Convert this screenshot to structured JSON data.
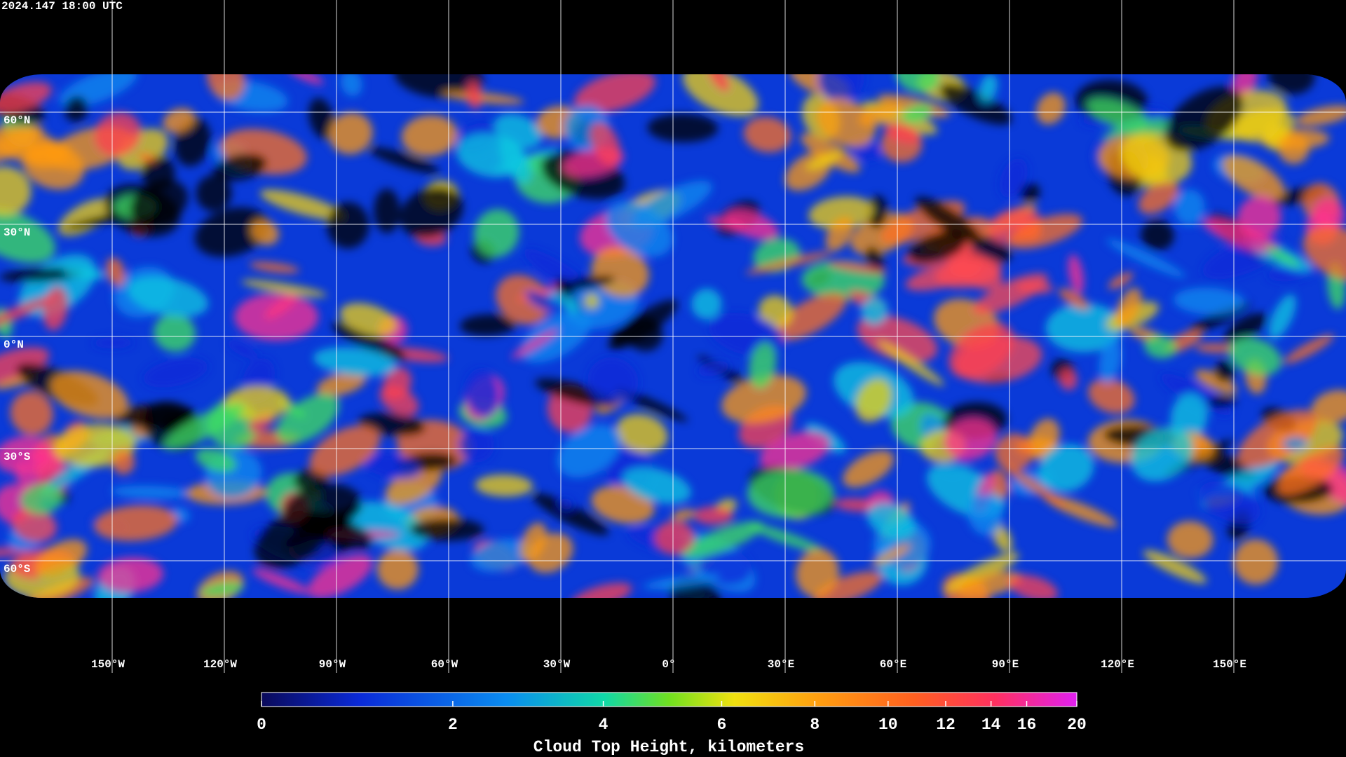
{
  "header": {
    "title": "2024.147 18:00 UTC"
  },
  "map": {
    "latitude_lines": [
      {
        "value": 60,
        "label": "60°N"
      },
      {
        "value": 30,
        "label": "30°N"
      },
      {
        "value": 0,
        "label": "0°N"
      },
      {
        "value": -30,
        "label": "30°S"
      },
      {
        "value": -60,
        "label": "60°S"
      }
    ],
    "longitude_lines": [
      {
        "value": -150,
        "label": "150°W"
      },
      {
        "value": -120,
        "label": "120°W"
      },
      {
        "value": -90,
        "label": "90°W"
      },
      {
        "value": -60,
        "label": "60°W"
      },
      {
        "value": -30,
        "label": "30°W"
      },
      {
        "value": 0,
        "label": "0°"
      },
      {
        "value": 30,
        "label": "30°E"
      },
      {
        "value": 60,
        "label": "60°E"
      },
      {
        "value": 90,
        "label": "90°E"
      },
      {
        "value": 120,
        "label": "120°E"
      },
      {
        "value": 150,
        "label": "150°E"
      }
    ]
  },
  "colorbar": {
    "label": "Cloud Top Height, kilometers",
    "range": [
      0,
      20
    ],
    "ticks": [
      0,
      2,
      4,
      6,
      8,
      10,
      12,
      14,
      16,
      20
    ]
  }
}
